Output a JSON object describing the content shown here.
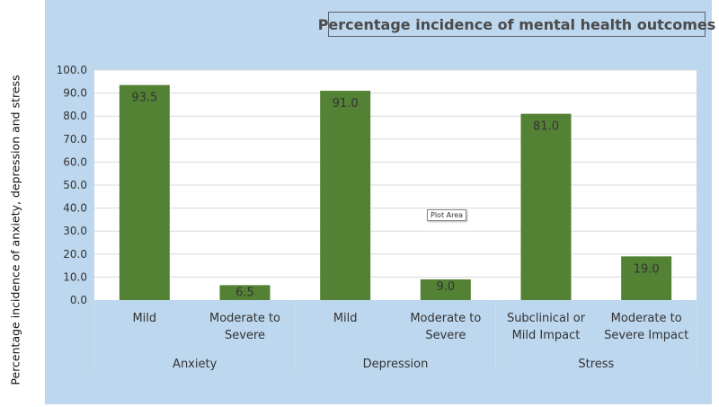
{
  "chart_data": {
    "type": "bar",
    "title": "Percentage incidence of mental health outcomes",
    "ylabel": "Percentage incidence of anxiety, depression and stress",
    "xlabel": "",
    "ylim": [
      0,
      100
    ],
    "yticks": [
      "0.0",
      "10.0",
      "20.0",
      "30.0",
      "40.0",
      "50.0",
      "60.0",
      "70.0",
      "80.0",
      "90.0",
      "100.0"
    ],
    "grid": true,
    "categories": [
      [
        "Mild"
      ],
      [
        "Moderate to",
        "Severe"
      ],
      [
        "Mild"
      ],
      [
        "Moderate to",
        "Severe"
      ],
      [
        "Subclinical or",
        "Mild Impact"
      ],
      [
        "Moderate to",
        "Severe Impact"
      ]
    ],
    "groups": [
      "Anxiety",
      "Depression",
      "Stress"
    ],
    "values": [
      93.5,
      6.5,
      91.0,
      9.0,
      81.0,
      19.0
    ],
    "value_labels": [
      "93.5",
      "6.5",
      "91.0",
      "9.0",
      "81.0",
      "19.0"
    ],
    "bar_color": "#548235",
    "background_color": "#bdd7ee"
  },
  "tooltip": "Plot Area"
}
